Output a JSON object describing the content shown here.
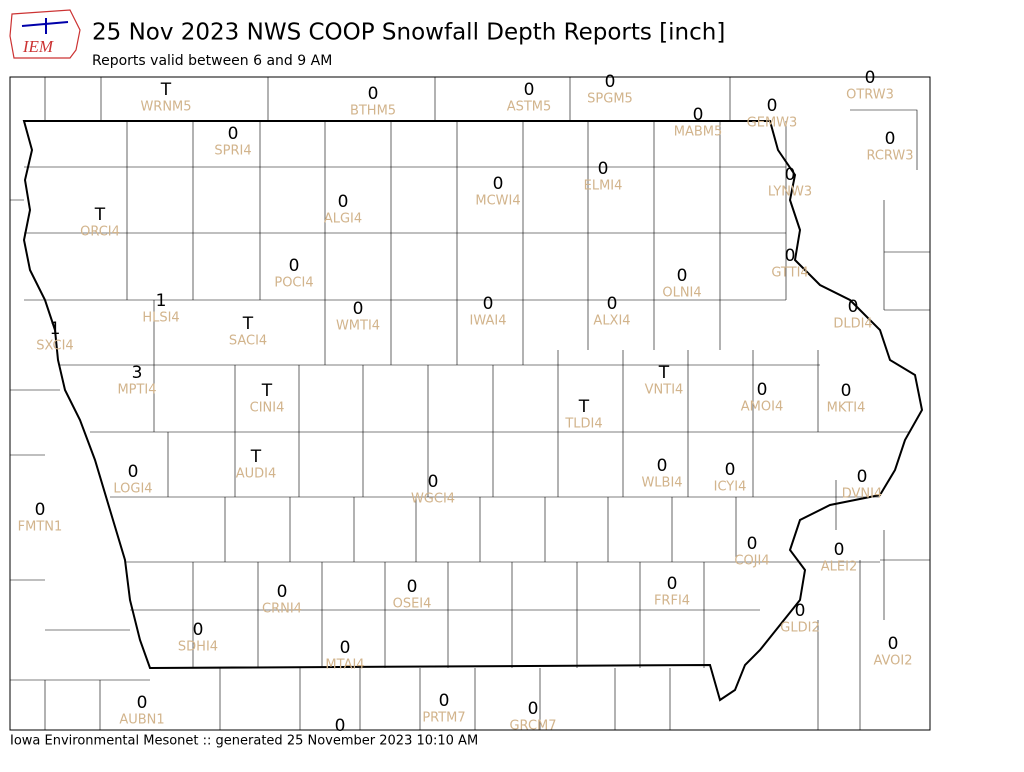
{
  "header": {
    "logo": "IEM",
    "title": "25 Nov 2023 NWS COOP Snowfall Depth Reports [inch]",
    "subtitle": "Reports valid between 6 and 9 AM"
  },
  "stations": [
    {
      "id": "WRNM5",
      "value": "T"
    },
    {
      "id": "BTHM5",
      "value": 0
    },
    {
      "id": "ASTM5",
      "value": 0
    },
    {
      "id": "SPGM5",
      "value": 0
    },
    {
      "id": "OTRW3",
      "value": 0
    },
    {
      "id": "MABM5",
      "value": 0
    },
    {
      "id": "GEMW3",
      "value": 0
    },
    {
      "id": "SPRI4",
      "value": 0
    },
    {
      "id": "RCRW3",
      "value": 0
    },
    {
      "id": "ELMI4",
      "value": 0
    },
    {
      "id": "MCWI4",
      "value": 0
    },
    {
      "id": "LYNW3",
      "value": 0
    },
    {
      "id": "ALGI4",
      "value": 0
    },
    {
      "id": "ORCI4",
      "value": "T"
    },
    {
      "id": "GTTI4",
      "value": 0
    },
    {
      "id": "POCI4",
      "value": 0
    },
    {
      "id": "OLNI4",
      "value": 0
    },
    {
      "id": "HLSI4",
      "value": 1
    },
    {
      "id": "ALXI4",
      "value": 0
    },
    {
      "id": "IWAI4",
      "value": 0
    },
    {
      "id": "WMTI4",
      "value": 0
    },
    {
      "id": "DLDI4",
      "value": 0
    },
    {
      "id": "SACI4",
      "value": "T"
    },
    {
      "id": "SXCI4",
      "value": 1
    },
    {
      "id": "MPTI4",
      "value": 3
    },
    {
      "id": "VNTI4",
      "value": "T"
    },
    {
      "id": "AMOI4",
      "value": 0
    },
    {
      "id": "MKTI4",
      "value": 0
    },
    {
      "id": "CINI4",
      "value": "T"
    },
    {
      "id": "TLDI4",
      "value": "T"
    },
    {
      "id": "AUDI4",
      "value": "T"
    },
    {
      "id": "WLBI4",
      "value": 0
    },
    {
      "id": "ICYI4",
      "value": 0
    },
    {
      "id": "LOGI4",
      "value": 0
    },
    {
      "id": "DVNI4",
      "value": 0
    },
    {
      "id": "WGCI4",
      "value": 0
    },
    {
      "id": "FMTN1",
      "value": 0
    },
    {
      "id": "COJI4",
      "value": 0
    },
    {
      "id": "ALEI2",
      "value": 0
    },
    {
      "id": "FRFI4",
      "value": 0
    },
    {
      "id": "OSEI4",
      "value": 0
    },
    {
      "id": "CRNI4",
      "value": 0
    },
    {
      "id": "GLDI2",
      "value": 0
    },
    {
      "id": "SDHI4",
      "value": 0
    },
    {
      "id": "AVOI2",
      "value": 0
    },
    {
      "id": "MTAI4",
      "value": 0
    },
    {
      "id": "PRTM7",
      "value": 0
    },
    {
      "id": "AUBN1",
      "value": 0
    },
    {
      "id": "GRCM7",
      "value": 0
    },
    {
      "value": 0
    }
  ],
  "footer": "Iowa Environmental Mesonet :: generated 25 November 2023 10:10 AM"
}
